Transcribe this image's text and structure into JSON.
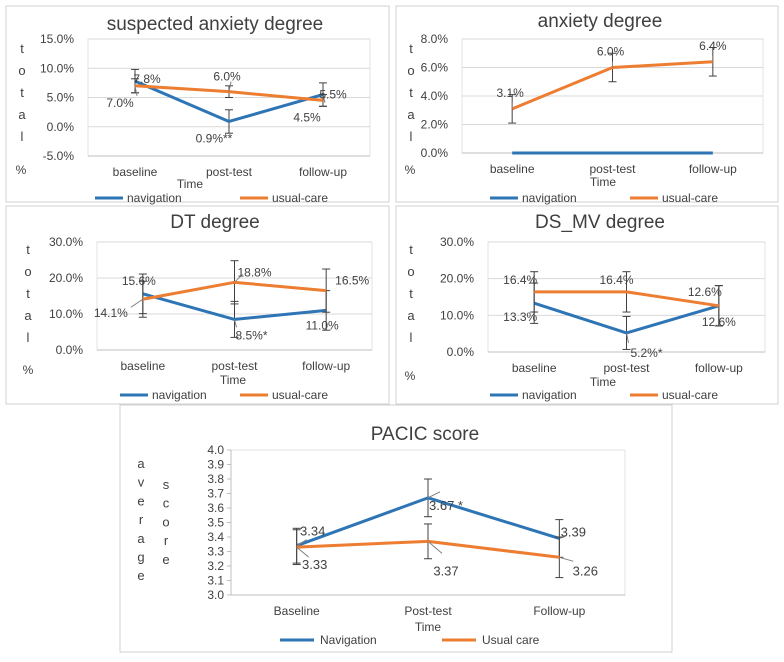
{
  "colors": {
    "navigation": "#2e75b6",
    "usual_care": "#ed7d31",
    "grid": "#d9d9d9",
    "error": "#404040",
    "frame": "#d0d0d0"
  },
  "chart_data": [
    {
      "id": "c1",
      "type": "line",
      "title": "suspected anxiety degree",
      "ylabel_chars": [
        "t",
        "o",
        "t",
        "a",
        "l"
      ],
      "ylabel_unit": "%",
      "xlabel": "Time",
      "categories": [
        "baseline",
        "post-test",
        "follow-up"
      ],
      "yticks": [
        -5,
        0,
        5,
        10,
        15
      ],
      "ytick_labels": [
        "-5.0%",
        "0.0%",
        "5.0%",
        "10.0%",
        "15.0%"
      ],
      "ylim": [
        -5,
        15
      ],
      "grid": true,
      "series": [
        {
          "name": "navigation",
          "color": "#2e75b6",
          "values": [
            7.8,
            0.9,
            5.5
          ],
          "errors": [
            2.0,
            2.0,
            2.0
          ],
          "labels": [
            "7.8%",
            "0.9%**",
            "5.5%"
          ]
        },
        {
          "name": "usual-care",
          "color": "#ed7d31",
          "values": [
            7.0,
            6.0,
            4.5
          ],
          "errors": [
            1.2,
            1.0,
            1.0
          ],
          "labels": [
            "7.0%",
            "6.0%",
            "4.5%"
          ]
        }
      ]
    },
    {
      "id": "c2",
      "type": "line",
      "title": "anxiety degree",
      "ylabel_chars": [
        "t",
        "o",
        "t",
        "a",
        "l"
      ],
      "ylabel_unit": "%",
      "xlabel": "Time",
      "categories": [
        "baseline",
        "post-test",
        "follow-up"
      ],
      "yticks": [
        0,
        2,
        4,
        6,
        8
      ],
      "ytick_labels": [
        "0.0%",
        "2.0%",
        "4.0%",
        "6.0%",
        "8.0%"
      ],
      "ylim": [
        0,
        8
      ],
      "grid": true,
      "series": [
        {
          "name": "navigation",
          "color": "#2e75b6",
          "values": [
            0,
            0,
            0
          ],
          "errors": [
            0,
            0,
            0
          ],
          "labels": [
            "",
            "",
            ""
          ]
        },
        {
          "name": "usual-care",
          "color": "#ed7d31",
          "values": [
            3.1,
            6.0,
            6.4
          ],
          "errors": [
            1.0,
            1.0,
            1.0
          ],
          "labels": [
            "3.1%",
            "6.0%",
            "6.4%"
          ]
        }
      ]
    },
    {
      "id": "c3",
      "type": "line",
      "title": "DT degree",
      "ylabel_chars": [
        "t",
        "o",
        "t",
        "a",
        "l"
      ],
      "ylabel_unit": "%",
      "xlabel": "Time",
      "categories": [
        "baseline",
        "post-test",
        "follow-up"
      ],
      "yticks": [
        0,
        10,
        20,
        30
      ],
      "ytick_labels": [
        "0.0%",
        "10.0%",
        "20.0%",
        "30.0%"
      ],
      "ylim": [
        0,
        30
      ],
      "grid": true,
      "series": [
        {
          "name": "navigation",
          "color": "#2e75b6",
          "values": [
            15.6,
            8.5,
            11.0
          ],
          "errors": [
            5.5,
            5.0,
            5.5
          ],
          "labels": [
            "15.6%",
            "8.5%*",
            "11.0%"
          ]
        },
        {
          "name": "usual-care",
          "color": "#ed7d31",
          "values": [
            14.1,
            18.8,
            16.5
          ],
          "errors": [
            5.0,
            6.0,
            6.0
          ],
          "labels": [
            "14.1%",
            "18.8%",
            "16.5%"
          ]
        }
      ]
    },
    {
      "id": "c4",
      "type": "line",
      "title": "DS_MV degree",
      "ylabel_chars": [
        "t",
        "o",
        "t",
        "a",
        "l"
      ],
      "ylabel_unit": "%",
      "xlabel": "Time",
      "categories": [
        "baseline",
        "post-test",
        "follow-up"
      ],
      "yticks": [
        0,
        10,
        20,
        30
      ],
      "ytick_labels": [
        "0.0%",
        "10.0%",
        "20.0%",
        "30.0%"
      ],
      "ylim": [
        0,
        30
      ],
      "grid": true,
      "series": [
        {
          "name": "navigation",
          "color": "#2e75b6",
          "values": [
            13.3,
            5.2,
            12.6
          ],
          "errors": [
            5.5,
            4.5,
            5.5
          ],
          "labels": [
            "13.3%",
            "5.2%*",
            "12.6%"
          ]
        },
        {
          "name": "usual-care",
          "color": "#ed7d31",
          "values": [
            16.4,
            16.4,
            12.6
          ],
          "errors": [
            5.5,
            5.5,
            5.5
          ],
          "labels": [
            "16.4%",
            "16.4%",
            "12.6%"
          ]
        }
      ]
    },
    {
      "id": "c5",
      "type": "line",
      "title": "PACIC score",
      "ylabel_chars": [
        "a",
        "v",
        "e",
        "r",
        "a",
        "g",
        "e"
      ],
      "ylabel2_chars": [
        "s",
        "c",
        "o",
        "r",
        "e"
      ],
      "xlabel": "Time",
      "categories": [
        "Baseline",
        "Post-test",
        "Follow-up"
      ],
      "yticks": [
        3.0,
        3.1,
        3.2,
        3.3,
        3.4,
        3.5,
        3.6,
        3.7,
        3.8,
        3.9,
        4.0
      ],
      "ytick_labels": [
        "3.0",
        "3.1",
        "3.2",
        "3.3",
        "3.4",
        "3.5",
        "3.6",
        "3.7",
        "3.8",
        "3.9",
        "4.0"
      ],
      "ylim": [
        3.0,
        4.0
      ],
      "grid": false,
      "series": [
        {
          "name": "Navigation",
          "color": "#2e75b6",
          "values": [
            3.34,
            3.67,
            3.39
          ],
          "errors": [
            0.12,
            0.13,
            0.13
          ],
          "labels": [
            "3.34",
            "3.67 *",
            "3.39"
          ]
        },
        {
          "name": "Usual care",
          "color": "#ed7d31",
          "values": [
            3.33,
            3.37,
            3.26
          ],
          "errors": [
            0.12,
            0.12,
            0.14
          ],
          "labels": [
            "3.33",
            "3.37",
            "3.26"
          ]
        }
      ]
    }
  ]
}
